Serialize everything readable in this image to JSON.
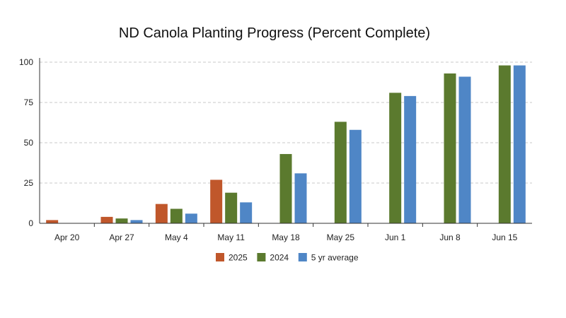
{
  "chart_data": {
    "type": "bar",
    "title": "ND Canola Planting Progress (Percent Complete)",
    "xlabel": "",
    "ylabel": "",
    "ylim": [
      0,
      100
    ],
    "yticks": [
      0,
      25,
      50,
      75,
      100
    ],
    "grid": true,
    "legend_position": "bottom",
    "categories": [
      "Apr 20",
      "Apr 27",
      "May 4",
      "May 11",
      "May 18",
      "May 25",
      "Jun 1",
      "Jun 8",
      "Jun 15"
    ],
    "series": [
      {
        "name": "2025",
        "color": "#c0572b",
        "values": [
          2,
          4,
          12,
          27,
          null,
          null,
          null,
          null,
          null
        ]
      },
      {
        "name": "2024",
        "color": "#5b7a2e",
        "values": [
          0,
          3,
          9,
          19,
          43,
          63,
          81,
          93,
          98
        ]
      },
      {
        "name": "5 yr average",
        "color": "#4f86c6",
        "values": [
          0,
          2,
          6,
          13,
          31,
          58,
          79,
          91,
          98
        ]
      }
    ]
  }
}
